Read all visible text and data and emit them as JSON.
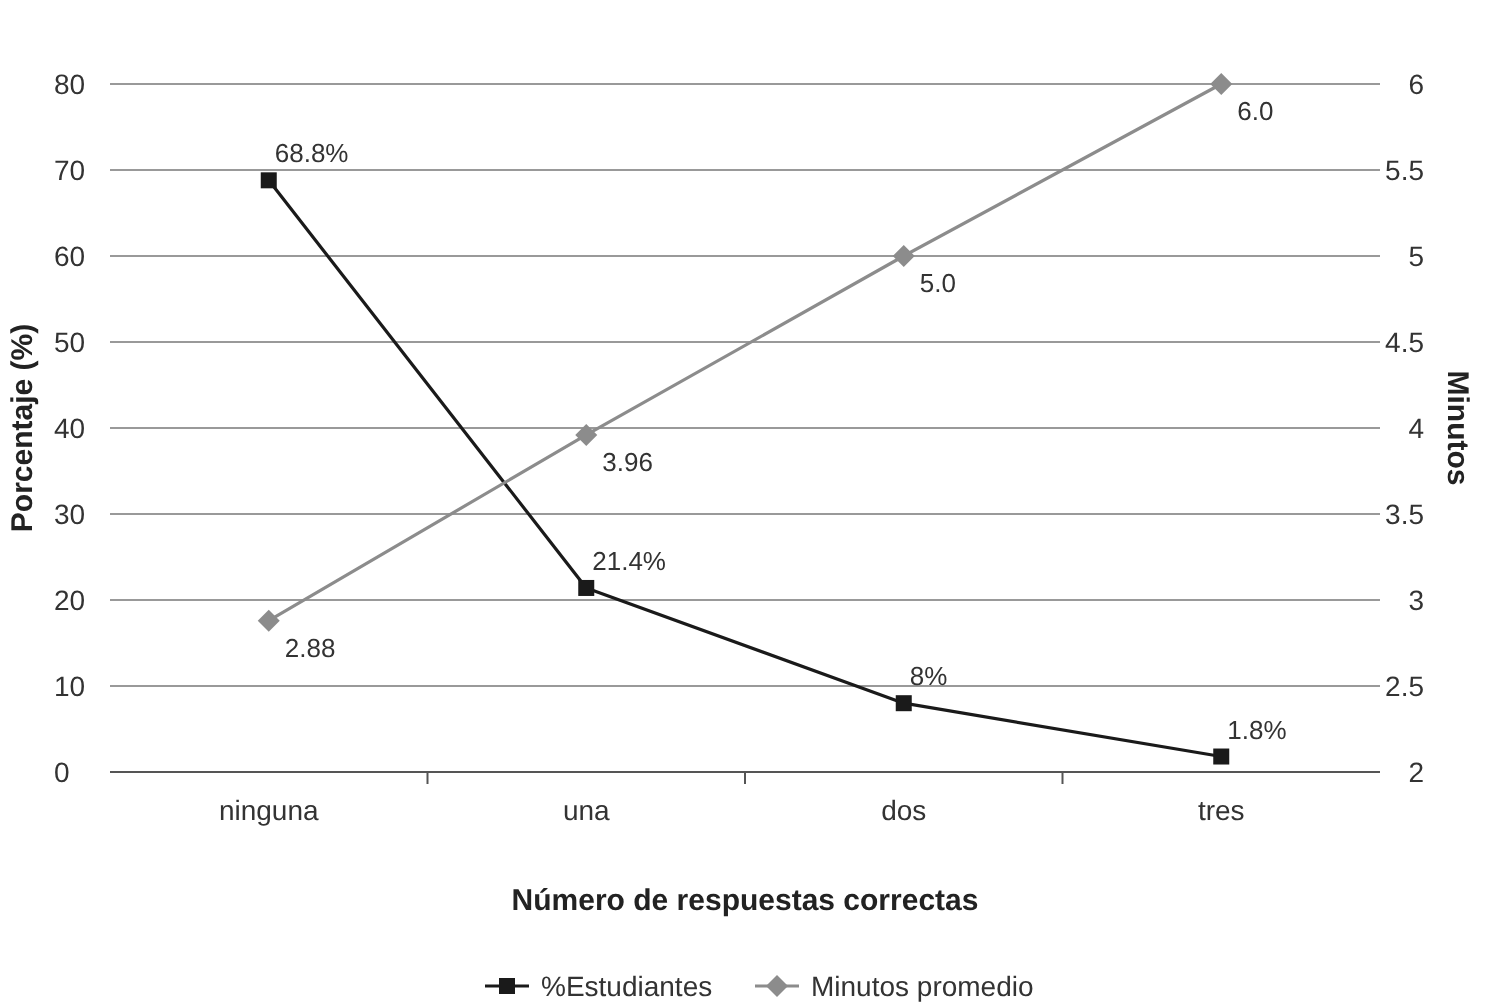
{
  "chart_data": {
    "type": "line",
    "xlabel": "Número de respuestas correctas",
    "ylabel": "Porcentaje (%)",
    "y2label": "Minutos",
    "categories": [
      "ninguna",
      "una",
      "dos",
      "tres"
    ],
    "series": [
      {
        "name": "%Estudiantes",
        "color": "#1a1a1a",
        "marker": "square",
        "values": [
          68.8,
          21.4,
          8,
          1.8
        ],
        "value_labels": [
          "68.8%",
          "21.4%",
          "8%",
          "1.8%"
        ]
      },
      {
        "name": "Minutos promedio",
        "color": "#8c8c8c",
        "marker": "diamond",
        "axis": "y2",
        "values": [
          2.88,
          3.96,
          5.0,
          6.0
        ],
        "value_labels": [
          "2.88",
          "3.96",
          "5.0",
          "6.0"
        ]
      }
    ],
    "ylim": [
      0,
      80
    ],
    "yticks": [
      0,
      10,
      20,
      30,
      40,
      50,
      60,
      70,
      80
    ],
    "y2lim": [
      2,
      6
    ],
    "y2ticks": [
      2,
      2.5,
      3,
      3.5,
      4,
      4.5,
      5,
      5.5,
      6
    ],
    "grid": "y",
    "legend": "bottom"
  }
}
